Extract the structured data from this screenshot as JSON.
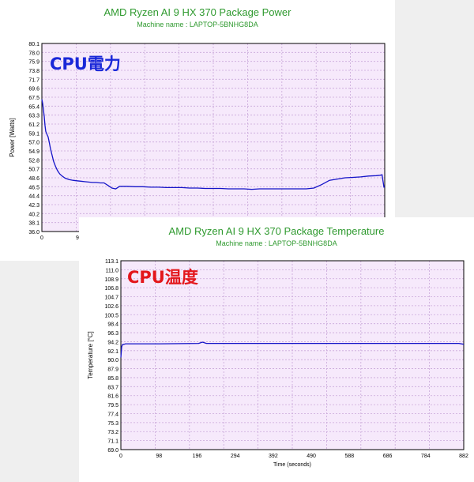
{
  "labels": {
    "power_overlay": "CPU電力",
    "temp_overlay": "CPU温度"
  },
  "colors": {
    "plot_bg": "#f6e9fb",
    "grid": "#c9a7d9",
    "series": "#1414c8",
    "title": "#2f9a2f",
    "power_overlay": "#1a28d8",
    "temp_overlay": "#e3161b"
  },
  "chart_data": [
    {
      "type": "line",
      "title": "AMD Ryzen AI 9 HX 370 Package Power",
      "subtitle": "Machine name : LAPTOP-5BNHG8DA",
      "ylabel": "Power [Watts]",
      "xlabel": "",
      "ylim": [
        36.0,
        80.1
      ],
      "yticks": [
        "80.1",
        "78.0",
        "75.9",
        "73.8",
        "71.7",
        "69.6",
        "67.5",
        "65.4",
        "63.3",
        "61.2",
        "59.1",
        "57.0",
        "54.9",
        "52.8",
        "50.7",
        "48.6",
        "46.5",
        "44.4",
        "42.3",
        "40.2",
        "38.1",
        "36.0"
      ],
      "xlim": [
        0,
        882
      ],
      "xticks_visible": [
        "0",
        "9"
      ],
      "grid": true,
      "series": [
        {
          "x": [
            0,
            2,
            4,
            6,
            8,
            10,
            13,
            16,
            19,
            22,
            26,
            30,
            35,
            40,
            46,
            52,
            60,
            70,
            80,
            90,
            100,
            110,
            120,
            130,
            140,
            150,
            160,
            170,
            180,
            190,
            200,
            220,
            240,
            260,
            280,
            300,
            320,
            340,
            360,
            380,
            400,
            420,
            440,
            460,
            480,
            500,
            520,
            540,
            560,
            580,
            600,
            620,
            640,
            660,
            680,
            700,
            720,
            740,
            760,
            780,
            800,
            820,
            840,
            860,
            870,
            875,
            880,
            882
          ],
          "y": [
            67.0,
            66.0,
            64.5,
            63.0,
            61.0,
            59.5,
            58.8,
            58.2,
            57.0,
            55.5,
            54.0,
            52.5,
            51.3,
            50.3,
            49.5,
            49.0,
            48.5,
            48.2,
            48.0,
            47.9,
            47.8,
            47.7,
            47.6,
            47.5,
            47.5,
            47.4,
            47.4,
            46.8,
            46.2,
            46.0,
            46.6,
            46.6,
            46.5,
            46.5,
            46.4,
            46.4,
            46.3,
            46.3,
            46.3,
            46.2,
            46.2,
            46.1,
            46.1,
            46.1,
            46.0,
            46.0,
            46.0,
            45.9,
            46.0,
            46.0,
            46.0,
            46.0,
            46.0,
            46.0,
            46.0,
            46.2,
            47.0,
            48.0,
            48.3,
            48.6,
            48.7,
            48.8,
            49.0,
            49.1,
            49.2,
            49.3,
            46.4,
            46.4
          ]
        }
      ]
    },
    {
      "type": "line",
      "title": "AMD Ryzen AI 9 HX 370 Package Temperature",
      "subtitle": "Machine name : LAPTOP-5BNHG8DA",
      "ylabel": "Temperature [°C]",
      "xlabel": "Time (seconds)",
      "ylim": [
        69.0,
        113.1
      ],
      "yticks": [
        "113.1",
        "111.0",
        "108.9",
        "106.8",
        "104.7",
        "102.6",
        "100.5",
        "98.4",
        "96.3",
        "94.2",
        "92.1",
        "90.0",
        "87.9",
        "85.8",
        "83.7",
        "81.6",
        "79.5",
        "77.4",
        "75.3",
        "73.2",
        "71.1",
        "69.0"
      ],
      "xlim": [
        0,
        882
      ],
      "xticks": [
        "0",
        "98",
        "196",
        "294",
        "392",
        "490",
        "588",
        "686",
        "784",
        "882"
      ],
      "grid": true,
      "series": [
        {
          "x": [
            0,
            2,
            4,
            6,
            8,
            12,
            20,
            40,
            100,
            200,
            210,
            220,
            300,
            400,
            500,
            600,
            700,
            800,
            870,
            882
          ],
          "y": [
            90.5,
            93.0,
            93.5,
            93.6,
            93.6,
            93.7,
            93.7,
            93.7,
            93.7,
            93.8,
            94.1,
            93.8,
            93.8,
            93.8,
            93.8,
            93.8,
            93.8,
            93.8,
            93.8,
            93.6
          ]
        }
      ]
    }
  ]
}
